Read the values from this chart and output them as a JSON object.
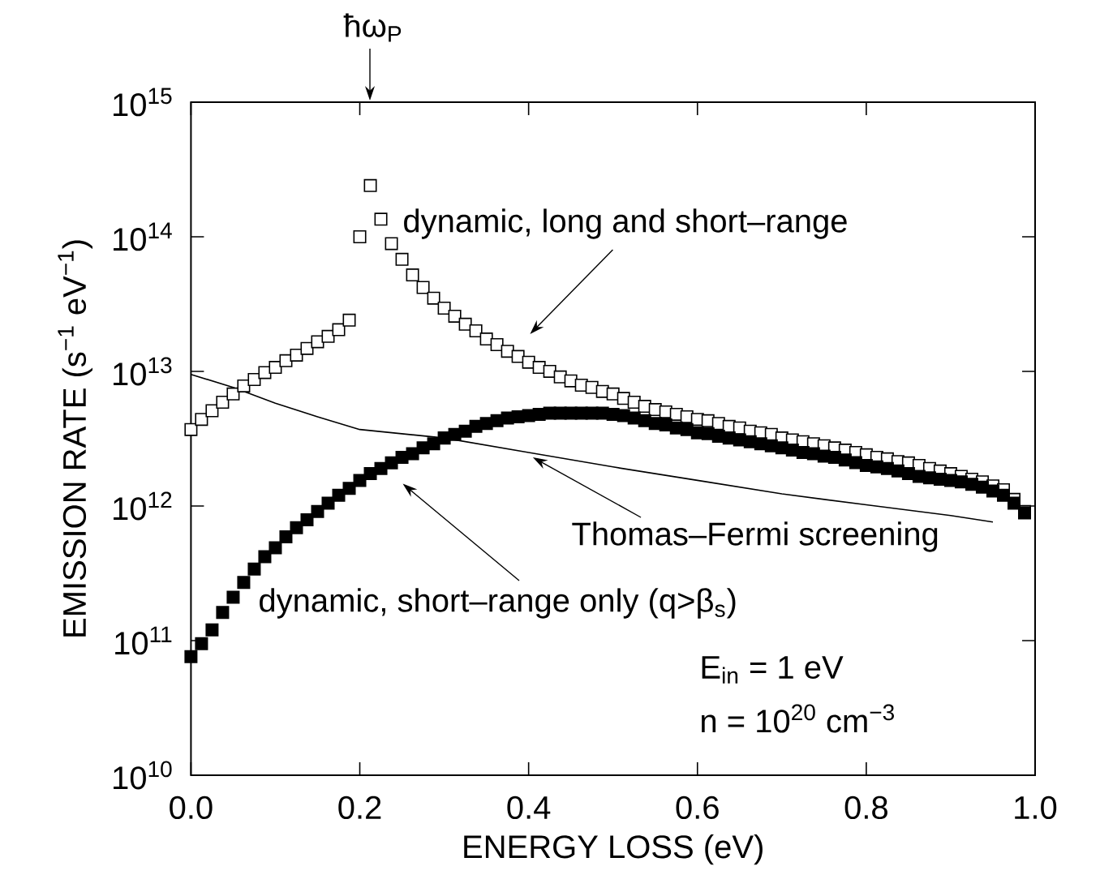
{
  "chart_data": {
    "type": "scatter",
    "xlabel": "ENERGY LOSS (eV)",
    "ylabel": "EMISSION RATE (s$^{−1}$ eV$^{−1}$)",
    "log": "y",
    "marker": "square",
    "xlim": [
      0,
      1
    ],
    "ylim": [
      10000000000.0,
      1000000000000000.0
    ],
    "xticks": [
      {
        "value": 0,
        "label": "0.0"
      },
      {
        "value": 0.2,
        "label": "0.2"
      },
      {
        "value": 0.4,
        "label": "0.4"
      },
      {
        "value": 0.6,
        "label": "0.6"
      },
      {
        "value": 0.8,
        "label": "0.8"
      },
      {
        "value": 1,
        "label": "1.0"
      }
    ],
    "yticks": [
      {
        "value": 10000000000.0,
        "label": "10$^{10}$"
      },
      {
        "value": 100000000000.0,
        "label": "10$^{11}$"
      },
      {
        "value": 1000000000000.0,
        "label": "10$^{12}$"
      },
      {
        "value": 10000000000000.0,
        "label": "10$^{13}$"
      },
      {
        "value": 100000000000000.0,
        "label": "10$^{14}$"
      },
      {
        "value": 1000000000000000.0,
        "label": "10$^{15}$"
      }
    ],
    "series": [
      {
        "color": "#000000",
        "x": [
          0,
          0.0125,
          0.025,
          0.0375,
          0.05,
          0.0625,
          0.075,
          0.0875,
          0.1,
          0.1125,
          0.125,
          0.1375,
          0.15,
          0.1625,
          0.175,
          0.1875,
          0.2,
          0.2125,
          0.225,
          0.2375,
          0.25,
          0.2625,
          0.275,
          0.2875,
          0.3,
          0.3125,
          0.325,
          0.3375,
          0.35,
          0.3625,
          0.375,
          0.3875,
          0.4,
          0.4125,
          0.425,
          0.4375,
          0.45,
          0.4625,
          0.475,
          0.4875,
          0.5,
          0.5125,
          0.525,
          0.5375,
          0.55,
          0.5625,
          0.575,
          0.5875,
          0.6,
          0.6125,
          0.625,
          0.6375,
          0.65,
          0.6625,
          0.675,
          0.6875,
          0.7,
          0.7125,
          0.725,
          0.7375,
          0.75,
          0.7625,
          0.775,
          0.7875,
          0.8,
          0.8125,
          0.825,
          0.8375,
          0.85,
          0.8625,
          0.875,
          0.8875,
          0.9,
          0.9125,
          0.925,
          0.9375,
          0.95,
          0.9625,
          0.975,
          0.9875
        ],
        "values": [
          3700000000000.0,
          4400000000000.0,
          5100000000000.0,
          5900000000000.0,
          6800000000000.0,
          7800000000000.0,
          8700000000000.0,
          9800000000000.0,
          10700000000000.0,
          12000000000000.0,
          13200000000000.0,
          14800000000000.0,
          16600000000000.0,
          18200000000000.0,
          20400000000000.0,
          24000000000000.0,
          100000000000000.0,
          240000000000000.0,
          135000000000000.0,
          89000000000000.0,
          68000000000000.0,
          52000000000000.0,
          42000000000000.0,
          35000000000000.0,
          29500000000000.0,
          25700000000000.0,
          22400000000000.0,
          20000000000000.0,
          17400000000000.0,
          15800000000000.0,
          14100000000000.0,
          12900000000000.0,
          11700000000000.0,
          10700000000000.0,
          10000000000000.0,
          9100000000000.0,
          8500000000000.0,
          7900000000000.0,
          7600000000000.0,
          7100000000000.0,
          6800000000000.0,
          6300000000000.0,
          5900000000000.0,
          5500000000000.0,
          5200000000000.0,
          5000000000000.0,
          4800000000000.0,
          4600000000000.0,
          4400000000000.0,
          4300000000000.0,
          4100000000000.0,
          3900000000000.0,
          3800000000000.0,
          3600000000000.0,
          3500000000000.0,
          3400000000000.0,
          3200000000000.0,
          3100000000000.0,
          3000000000000.0,
          2900000000000.0,
          2800000000000.0,
          2700000000000.0,
          2600000000000.0,
          2500000000000.0,
          2400000000000.0,
          2300000000000.0,
          2240000000000.0,
          2140000000000.0,
          2090000000000.0,
          2000000000000.0,
          1900000000000.0,
          1820000000000.0,
          1740000000000.0,
          1660000000000.0,
          1580000000000.0,
          1510000000000.0,
          1410000000000.0,
          1320000000000.0,
          1120000000000.0,
          910000000000.0
        ]
      },
      {
        "color": "#000000",
        "x": [
          0,
          0.0125,
          0.025,
          0.0375,
          0.05,
          0.0625,
          0.075,
          0.0875,
          0.1,
          0.1125,
          0.125,
          0.1375,
          0.15,
          0.1625,
          0.175,
          0.1875,
          0.2,
          0.2125,
          0.225,
          0.2375,
          0.25,
          0.2625,
          0.275,
          0.2875,
          0.3,
          0.3125,
          0.325,
          0.3375,
          0.35,
          0.3625,
          0.375,
          0.3875,
          0.4,
          0.4125,
          0.425,
          0.4375,
          0.45,
          0.4625,
          0.475,
          0.4875,
          0.5,
          0.5125,
          0.525,
          0.5375,
          0.55,
          0.5625,
          0.575,
          0.5875,
          0.6,
          0.6125,
          0.625,
          0.6375,
          0.65,
          0.6625,
          0.675,
          0.6875,
          0.7,
          0.7125,
          0.725,
          0.7375,
          0.75,
          0.7625,
          0.775,
          0.7875,
          0.8,
          0.8125,
          0.825,
          0.8375,
          0.85,
          0.8625,
          0.875,
          0.8875,
          0.9,
          0.9125,
          0.925,
          0.9375,
          0.95,
          0.9625,
          0.975,
          0.9875
        ],
        "values": [
          76000000000.0,
          95000000000.0,
          120000000000.0,
          162000000000.0,
          210000000000.0,
          270000000000.0,
          340000000000.0,
          420000000000.0,
          490000000000.0,
          590000000000.0,
          690000000000.0,
          790000000000.0,
          910000000000.0,
          1050000000000.0,
          1200000000000.0,
          1350000000000.0,
          1550000000000.0,
          1740000000000.0,
          1900000000000.0,
          2090000000000.0,
          2300000000000.0,
          2450000000000.0,
          2700000000000.0,
          2900000000000.0,
          3200000000000.0,
          3400000000000.0,
          3600000000000.0,
          3900000000000.0,
          4100000000000.0,
          4300000000000.0,
          4500000000000.0,
          4600000000000.0,
          4700000000000.0,
          4800000000000.0,
          4900000000000.0,
          4900000000000.0,
          4900000000000.0,
          4900000000000.0,
          4900000000000.0,
          4900000000000.0,
          4800000000000.0,
          4700000000000.0,
          4500000000000.0,
          4300000000000.0,
          4100000000000.0,
          4000000000000.0,
          3800000000000.0,
          3700000000000.0,
          3500000000000.0,
          3450000000000.0,
          3300000000000.0,
          3200000000000.0,
          3100000000000.0,
          3000000000000.0,
          2900000000000.0,
          2800000000000.0,
          2700000000000.0,
          2600000000000.0,
          2500000000000.0,
          2450000000000.0,
          2350000000000.0,
          2300000000000.0,
          2200000000000.0,
          2100000000000.0,
          2000000000000.0,
          1950000000000.0,
          1900000000000.0,
          1820000000000.0,
          1740000000000.0,
          1660000000000.0,
          1620000000000.0,
          1580000000000.0,
          1550000000000.0,
          1510000000000.0,
          1450000000000.0,
          1380000000000.0,
          1290000000000.0,
          1200000000000.0,
          1050000000000.0,
          890000000000.0
        ]
      },
      {
        "type": "line",
        "marker": "none",
        "color": "#000000",
        "x": [
          0,
          0.05,
          0.1,
          0.15,
          0.2,
          0.3,
          0.4,
          0.5,
          0.6,
          0.7,
          0.8,
          0.9,
          0.95
        ],
        "values": [
          9500000000000.0,
          7600000000000.0,
          5800000000000.0,
          4600000000000.0,
          3700000000000.0,
          3200000000000.0,
          2500000000000.0,
          1950000000000.0,
          1550000000000.0,
          1230000000000.0,
          1020000000000.0,
          850000000000.0,
          760000000000.0
        ]
      }
    ],
    "annotations": [
      "dynamic, long and short–range",
      {
        "text": "Thomas–Fermi screening",
        "x": 0.405,
        "y": 2300000000000.0
      },
      "dynamic, short–range only (q>β$_{s}$)",
      "E$_{in}$ = 1 eV",
      "n = 10$^{20}$ cm$^{−3}$",
      "ħω$_{P}$"
    ]
  }
}
